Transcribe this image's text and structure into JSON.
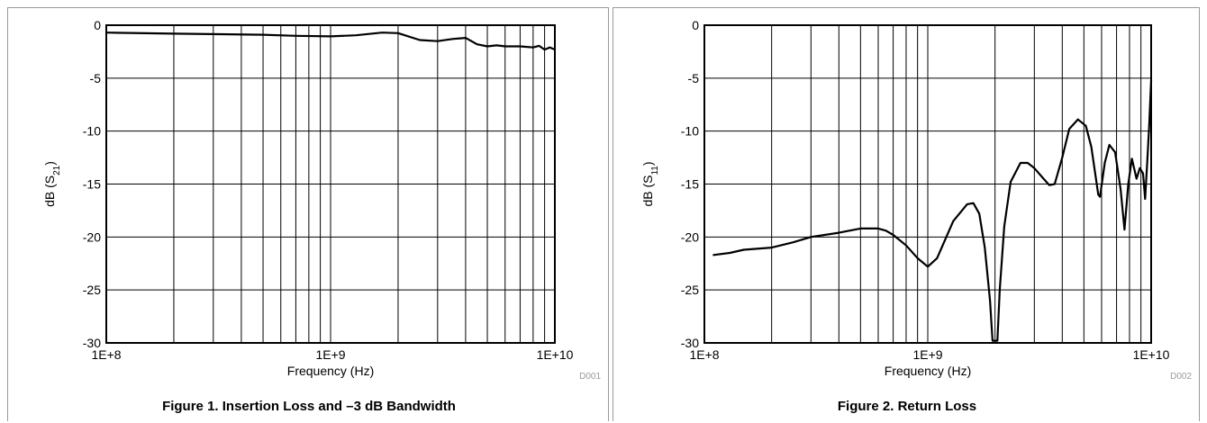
{
  "chart_data": [
    {
      "type": "line",
      "caption": "Figure 1. Insertion Loss and –3 dB Bandwidth",
      "xlabel": "Frequency (Hz)",
      "ylabel_main": "dB (S",
      "ylabel_sub": "21",
      "ylabel_tail": ")",
      "x_scale": "log",
      "xlim": [
        100000000,
        10000000000
      ],
      "ylim": [
        -30,
        0
      ],
      "x_tick_labels": [
        {
          "value": 100000000,
          "label": "1E+8"
        },
        {
          "value": 1000000000,
          "label": "1E+9"
        },
        {
          "value": 10000000000,
          "label": "1E+10"
        }
      ],
      "y_tick_labels": [
        {
          "value": 0,
          "label": "0"
        },
        {
          "value": -5,
          "label": "-5"
        },
        {
          "value": -10,
          "label": "-10"
        },
        {
          "value": -15,
          "label": "-15"
        },
        {
          "value": -20,
          "label": "-20"
        },
        {
          "value": -25,
          "label": "-25"
        },
        {
          "value": -30,
          "label": "-30"
        }
      ],
      "grid": true,
      "code": "D001",
      "series": [
        {
          "points": [
            [
              100000000,
              -0.7
            ],
            [
              200000000,
              -0.8
            ],
            [
              500000000,
              -0.9
            ],
            [
              700000000,
              -1.0
            ],
            [
              1000000000,
              -1.05
            ],
            [
              1300000000,
              -0.95
            ],
            [
              1700000000,
              -0.7
            ],
            [
              2000000000,
              -0.75
            ],
            [
              2500000000,
              -1.4
            ],
            [
              3000000000,
              -1.5
            ],
            [
              3500000000,
              -1.3
            ],
            [
              4000000000,
              -1.2
            ],
            [
              4500000000,
              -1.8
            ],
            [
              5000000000,
              -2.0
            ],
            [
              5500000000,
              -1.9
            ],
            [
              6000000000,
              -2.0
            ],
            [
              7000000000,
              -2.0
            ],
            [
              8000000000,
              -2.1
            ],
            [
              8500000000,
              -1.95
            ],
            [
              9000000000,
              -2.3
            ],
            [
              9500000000,
              -2.1
            ],
            [
              10000000000,
              -2.3
            ]
          ]
        }
      ]
    },
    {
      "type": "line",
      "caption": "Figure 2. Return Loss",
      "xlabel": "Frequency (Hz)",
      "ylabel_main": "dB (S",
      "ylabel_sub": "11",
      "ylabel_tail": ")",
      "x_scale": "log",
      "xlim": [
        100000000,
        10000000000
      ],
      "ylim": [
        -30,
        0
      ],
      "x_tick_labels": [
        {
          "value": 100000000,
          "label": "1E+8"
        },
        {
          "value": 1000000000,
          "label": "1E+9"
        },
        {
          "value": 10000000000,
          "label": "1E+10"
        }
      ],
      "y_tick_labels": [
        {
          "value": 0,
          "label": "0"
        },
        {
          "value": -5,
          "label": "-5"
        },
        {
          "value": -10,
          "label": "-10"
        },
        {
          "value": -15,
          "label": "-15"
        },
        {
          "value": -20,
          "label": "-20"
        },
        {
          "value": -25,
          "label": "-25"
        },
        {
          "value": -30,
          "label": "-30"
        }
      ],
      "grid": true,
      "code": "D002",
      "series": [
        {
          "points": [
            [
              110000000,
              -21.7
            ],
            [
              130000000,
              -21.5
            ],
            [
              150000000,
              -21.2
            ],
            [
              200000000,
              -21.0
            ],
            [
              250000000,
              -20.5
            ],
            [
              300000000,
              -20.0
            ],
            [
              400000000,
              -19.6
            ],
            [
              500000000,
              -19.2
            ],
            [
              600000000,
              -19.2
            ],
            [
              650000000,
              -19.4
            ],
            [
              700000000,
              -19.8
            ],
            [
              800000000,
              -20.8
            ],
            [
              900000000,
              -22.0
            ],
            [
              1000000000,
              -22.8
            ],
            [
              1100000000,
              -22.0
            ],
            [
              1300000000,
              -18.5
            ],
            [
              1500000000,
              -16.9
            ],
            [
              1600000000,
              -16.8
            ],
            [
              1700000000,
              -17.8
            ],
            [
              1800000000,
              -21.0
            ],
            [
              1900000000,
              -26.0
            ],
            [
              1950000000,
              -29.8
            ],
            [
              2050000000,
              -29.8
            ],
            [
              2100000000,
              -25.0
            ],
            [
              2200000000,
              -19.0
            ],
            [
              2350000000,
              -14.8
            ],
            [
              2600000000,
              -13.0
            ],
            [
              2800000000,
              -13.0
            ],
            [
              3000000000,
              -13.5
            ],
            [
              3300000000,
              -14.5
            ],
            [
              3500000000,
              -15.1
            ],
            [
              3700000000,
              -15.0
            ],
            [
              4000000000,
              -12.5
            ],
            [
              4300000000,
              -9.8
            ],
            [
              4700000000,
              -8.9
            ],
            [
              5100000000,
              -9.5
            ],
            [
              5400000000,
              -11.5
            ],
            [
              5800000000,
              -16.0
            ],
            [
              5900000000,
              -16.2
            ],
            [
              6200000000,
              -13.0
            ],
            [
              6500000000,
              -11.3
            ],
            [
              6900000000,
              -12.0
            ],
            [
              7300000000,
              -15.5
            ],
            [
              7600000000,
              -19.3
            ],
            [
              7900000000,
              -15.0
            ],
            [
              8200000000,
              -12.6
            ],
            [
              8600000000,
              -14.5
            ],
            [
              8900000000,
              -13.5
            ],
            [
              9200000000,
              -14.0
            ],
            [
              9400000000,
              -16.4
            ],
            [
              9600000000,
              -13.0
            ],
            [
              9800000000,
              -9.5
            ],
            [
              10000000000,
              -5.2
            ]
          ]
        }
      ]
    }
  ]
}
